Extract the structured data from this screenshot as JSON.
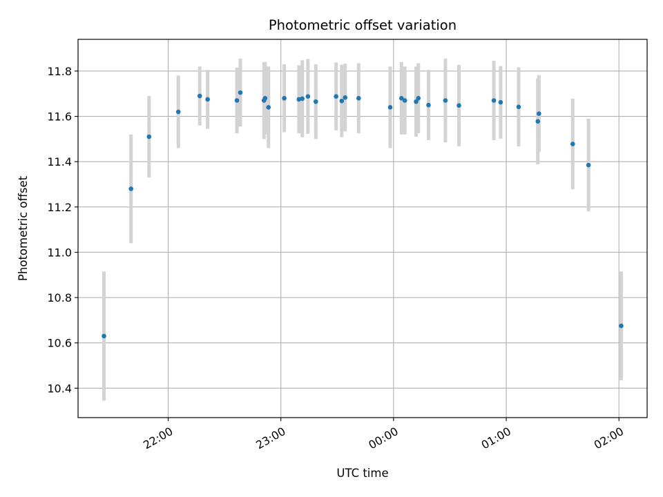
{
  "chart_data": {
    "type": "scatter",
    "title": "Photometric offset variation",
    "xlabel": "UTC time",
    "ylabel": "Photometric offset",
    "x_unit": "hours (UTC, values past 24 wrap to next day)",
    "xlim": [
      21.2,
      26.25
    ],
    "ylim": [
      10.27,
      11.94
    ],
    "xticks": [
      {
        "value": 22,
        "label": "22:00"
      },
      {
        "value": 23,
        "label": "23:00"
      },
      {
        "value": 24,
        "label": "00:00"
      },
      {
        "value": 25,
        "label": "01:00"
      },
      {
        "value": 26,
        "label": "02:00"
      }
    ],
    "yticks": [
      10.4,
      10.6,
      10.8,
      11.0,
      11.2,
      11.4,
      11.6,
      11.8
    ],
    "grid": true,
    "colors": {
      "point": "#1f77b4",
      "errorbar": "#d3d3d3",
      "grid": "#b0b0b0"
    },
    "series": [
      {
        "x": [
          21.43,
          21.67,
          21.83,
          22.09,
          22.28,
          22.35,
          22.61,
          22.64,
          22.85,
          22.86,
          22.89,
          23.03,
          23.16,
          23.19,
          23.24,
          23.31,
          23.49,
          23.54,
          23.57,
          23.69,
          23.97,
          24.07,
          24.1,
          24.2,
          24.22,
          24.31,
          24.46,
          24.58,
          24.89,
          24.95,
          25.11,
          25.28,
          25.29,
          25.59,
          25.73,
          26.02
        ],
        "y": [
          10.63,
          11.28,
          11.51,
          11.62,
          11.69,
          11.675,
          11.67,
          11.705,
          11.67,
          11.68,
          11.64,
          11.68,
          11.675,
          11.678,
          11.688,
          11.665,
          11.688,
          11.668,
          11.683,
          11.68,
          11.64,
          11.68,
          11.67,
          11.665,
          11.68,
          11.65,
          11.67,
          11.648,
          11.67,
          11.662,
          11.642,
          11.578,
          11.612,
          11.478,
          11.385,
          10.675
        ],
        "yerr": [
          0.285,
          0.24,
          0.18,
          0.16,
          0.13,
          0.13,
          0.145,
          0.15,
          0.17,
          0.16,
          0.18,
          0.15,
          0.15,
          0.17,
          0.165,
          0.165,
          0.15,
          0.16,
          0.15,
          0.155,
          0.18,
          0.16,
          0.15,
          0.155,
          0.155,
          0.155,
          0.185,
          0.18,
          0.175,
          0.16,
          0.175,
          0.19,
          0.17,
          0.2,
          0.205,
          0.24
        ]
      }
    ]
  }
}
